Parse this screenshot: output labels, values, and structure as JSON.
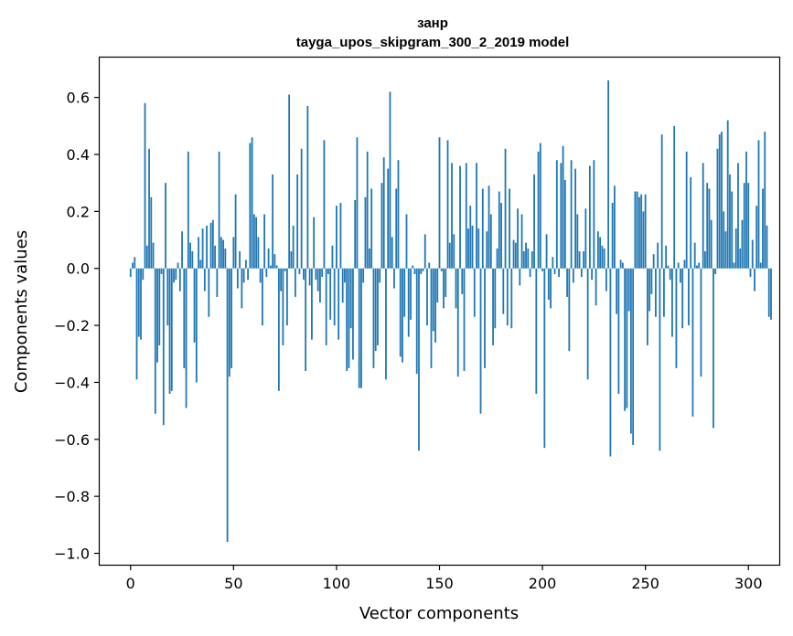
{
  "chart_data": {
    "type": "bar",
    "title": "занр",
    "subtitle": "tayga_upos_skipgram_300_2_2019 model",
    "xlabel": "Vector components",
    "ylabel": "Components values",
    "xlim": [
      -15,
      315
    ],
    "ylim": [
      -1.04,
      0.74
    ],
    "xticks": [
      0,
      50,
      100,
      150,
      200,
      250,
      300
    ],
    "yticks": [
      -1.0,
      -0.8,
      -0.6,
      -0.4,
      -0.2,
      0.0,
      0.2,
      0.4,
      0.6
    ],
    "ytick_labels": [
      "−1.0",
      "−0.8",
      "−0.6",
      "−0.4",
      "−0.2",
      "0.0",
      "0.2",
      "0.4",
      "0.6"
    ],
    "bar_color": "#1f77b4",
    "grid": false,
    "values": [
      -0.03,
      0.02,
      0.04,
      -0.39,
      -0.24,
      -0.25,
      -0.04,
      0.58,
      0.08,
      0.42,
      0.25,
      0.09,
      -0.51,
      -0.33,
      -0.27,
      -0.02,
      -0.55,
      0.3,
      -0.2,
      -0.44,
      -0.43,
      -0.05,
      -0.04,
      0.02,
      -0.08,
      0.13,
      -0.35,
      -0.49,
      0.41,
      0.09,
      0.06,
      -0.26,
      -0.4,
      0.11,
      0.03,
      0.14,
      -0.08,
      0.15,
      -0.17,
      0.16,
      0.17,
      0.08,
      -0.1,
      0.41,
      0.11,
      0.1,
      0.07,
      -0.96,
      -0.38,
      -0.35,
      0.11,
      0.26,
      -0.07,
      0.06,
      -0.14,
      -0.05,
      0.03,
      -0.04,
      0.44,
      0.46,
      0.19,
      0.18,
      0.11,
      -0.05,
      -0.2,
      0.19,
      -0.03,
      0.07,
      0.01,
      0.33,
      0.05,
      0.01,
      -0.43,
      -0.08,
      -0.27,
      -0.01,
      -0.2,
      0.61,
      0.06,
      0.15,
      -0.1,
      0.33,
      -0.02,
      0.42,
      -0.04,
      -0.36,
      0.57,
      -0.06,
      -0.25,
      0.18,
      -0.04,
      -0.08,
      -0.12,
      -0.03,
      0.45,
      -0.27,
      -0.02,
      -0.18,
      0.08,
      -0.2,
      0.22,
      -0.25,
      0.23,
      -0.12,
      -0.05,
      -0.36,
      -0.35,
      -0.21,
      -0.32,
      0.24,
      0.46,
      -0.42,
      -0.42,
      -0.05,
      0.25,
      0.41,
      0.07,
      0.28,
      -0.35,
      -0.29,
      -0.27,
      -0.05,
      0.3,
      0.39,
      -0.39,
      0.35,
      0.62,
      0.11,
      -0.07,
      0.28,
      0.38,
      -0.31,
      -0.33,
      -0.17,
      0.19,
      -0.24,
      -0.18,
      0.01,
      -0.02,
      -0.37,
      -0.64,
      -0.02,
      -0.01,
      0.12,
      -0.2,
      0.02,
      -0.35,
      -0.22,
      -0.26,
      -0.12,
      0.46,
      -0.01,
      -0.14,
      -0.1,
      0.45,
      0.09,
      0.37,
      0.12,
      -0.14,
      -0.38,
      0.36,
      -0.09,
      -0.36,
      0.37,
      0.14,
      0.22,
      0.15,
      -0.17,
      0.37,
      0.14,
      -0.51,
      0.28,
      -0.35,
      0.13,
      0.29,
      0.19,
      -0.27,
      -0.21,
      0.07,
      0.27,
      0.23,
      -0.16,
      0.42,
      -0.2,
      0.28,
      -0.21,
      0.1,
      0.09,
      0.21,
      -0.06,
      0.19,
      0.06,
      0.09,
      0.07,
      -0.03,
      0.06,
      0.33,
      -0.44,
      0.41,
      0.44,
      -0.01,
      -0.63,
      0.12,
      -0.11,
      -0.14,
      0.04,
      -0.02,
      0.38,
      -0.03,
      0.37,
      0.43,
      0.31,
      -0.1,
      -0.29,
      0.38,
      -0.05,
      0.35,
      0.19,
      0.06,
      -0.03,
      0.06,
      0.21,
      -0.39,
      0.36,
      -0.04,
      0.38,
      -0.13,
      0.13,
      0.11,
      0.08,
      0.07,
      -0.08,
      0.66,
      -0.66,
      0.23,
      0.29,
      -0.16,
      -0.44,
      0.03,
      0.02,
      -0.5,
      -0.49,
      -0.15,
      -0.58,
      -0.62,
      0.27,
      0.27,
      0.25,
      0.26,
      0.2,
      0.26,
      -0.27,
      -0.15,
      -0.09,
      0.05,
      -0.17,
      0.09,
      -0.64,
      0.47,
      -0.17,
      0.08,
      0.01,
      -0.04,
      -0.24,
      0.5,
      -0.35,
      0.02,
      -0.05,
      -0.21,
      0.03,
      0.41,
      -0.2,
      0.32,
      -0.52,
      0.09,
      0.01,
      0.02,
      -0.38,
      0.37,
      0.06,
      0.3,
      0.28,
      0.17,
      -0.56,
      -0.02,
      0.42,
      0.47,
      0.48,
      0.2,
      0.13,
      0.52,
      0.33,
      0.27,
      0.02,
      0.14,
      0.37,
      0.07,
      0.17,
      0.3,
      0.41,
      0.3,
      -0.03,
      0.1,
      -0.08,
      0.22,
      0.45,
      0.02,
      0.28,
      0.48,
      0.15,
      -0.17,
      -0.18
    ]
  }
}
